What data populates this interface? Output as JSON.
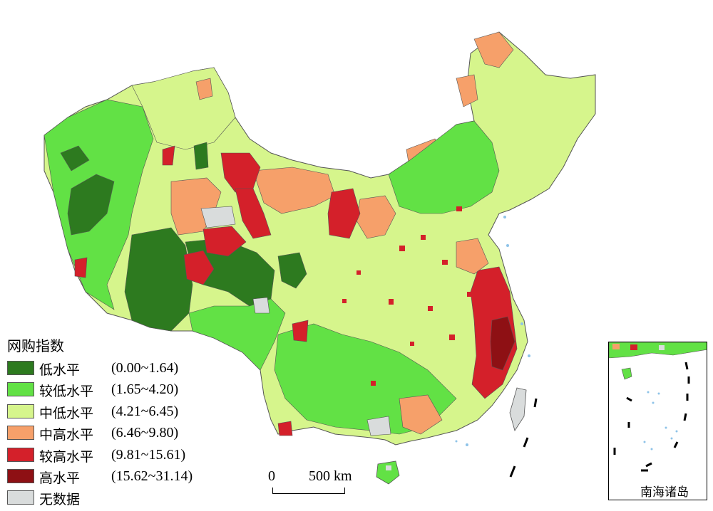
{
  "legend": {
    "title": "网购指数",
    "classes": [
      {
        "label": "低水平",
        "range": "(0.00~1.64)",
        "color": "#2d7a1f"
      },
      {
        "label": "较低水平",
        "range": "(1.65~4.20)",
        "color": "#62e145"
      },
      {
        "label": "中低水平",
        "range": "(4.21~6.45)",
        "color": "#d6f58c"
      },
      {
        "label": "中高水平",
        "range": "(6.46~9.80)",
        "color": "#f6a06a"
      },
      {
        "label": "较高水平",
        "range": "(9.81~15.61)",
        "color": "#d4202a"
      },
      {
        "label": "高水平",
        "range": "(15.62~31.14)",
        "color": "#8e1014"
      },
      {
        "label": "无数据",
        "range": "",
        "color": "#d9dcdc"
      }
    ]
  },
  "scale_bar": {
    "zero": "0",
    "distance": "500 km"
  },
  "inset": {
    "label": "南海诸岛"
  },
  "colors": {
    "water": "#8ec3e8",
    "boundary": "#555555"
  }
}
